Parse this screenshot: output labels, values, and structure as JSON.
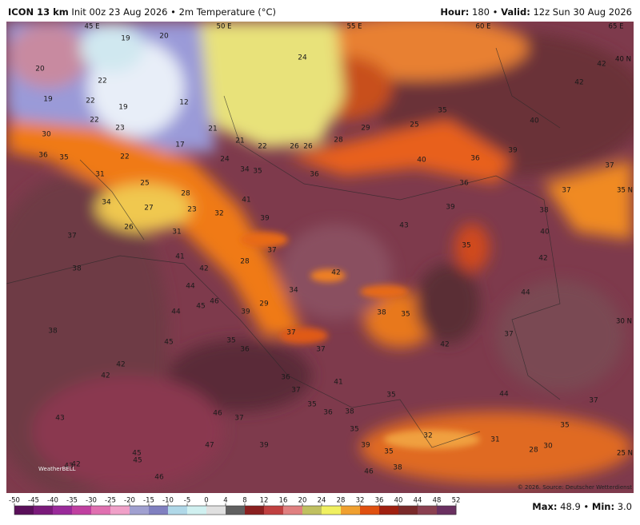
{
  "header": {
    "model": "ICON 13 km",
    "init": "Init 00z 23 Aug 2026",
    "separator": "•",
    "field": "2m Temperature (°C)",
    "hour_label": "Hour:",
    "hour": "180",
    "valid_label": "Valid:",
    "valid": "12z Sun 30 Aug 2026"
  },
  "grid_labels": [
    "45 E",
    "50 E",
    "55 E",
    "60 E",
    "65 E",
    "40 N",
    "35 N",
    "30 N",
    "25 N"
  ],
  "map_labels": [
    19,
    20,
    20,
    22,
    19,
    22,
    12,
    19,
    22,
    23,
    21,
    17,
    21,
    22,
    26,
    26,
    28,
    29,
    25,
    35,
    24,
    42,
    42,
    40,
    39,
    40,
    36,
    36,
    37,
    37,
    30,
    36,
    35,
    22,
    24,
    34,
    35,
    36,
    31,
    25,
    28,
    41,
    34,
    27,
    23,
    32,
    39,
    43,
    39,
    38,
    40,
    37,
    26,
    31,
    35,
    42,
    41,
    37,
    28,
    38,
    42,
    42,
    44,
    34,
    46,
    45,
    44,
    29,
    39,
    38,
    35,
    44,
    38,
    45,
    35,
    36,
    37,
    37,
    42,
    37,
    42,
    42,
    36,
    41,
    37,
    35,
    44,
    37,
    35,
    36,
    38,
    43,
    46,
    37,
    35,
    32,
    31,
    35,
    47,
    39,
    39,
    30,
    28,
    45,
    45,
    43,
    42,
    35,
    38,
    46,
    46
  ],
  "colorbar": {
    "ticks": [
      -50,
      -45,
      -40,
      -35,
      -30,
      -25,
      -20,
      -15,
      -10,
      -5,
      0,
      4,
      8,
      12,
      16,
      20,
      24,
      28,
      32,
      36,
      40,
      44,
      48,
      52
    ],
    "colors": [
      "#5a0f5a",
      "#7a1a7a",
      "#9a2a9a",
      "#c040a0",
      "#e070b0",
      "#f0a0c8",
      "#a0a0d0",
      "#8080c0",
      "#b0d8e8",
      "#d0f0f0",
      "#e0e0e0",
      "#606060",
      "#8a2020",
      "#c04040",
      "#e08080",
      "#c0c060",
      "#f0f060",
      "#f0a030",
      "#e05010",
      "#a02010",
      "#7a2a2a",
      "#8a4050",
      "#6a3060",
      "#306040"
    ]
  },
  "stats": {
    "max_label": "Max:",
    "max": 48.9,
    "min_label": "Min:",
    "min": {
      "value": 3,
      "label": "3.0"
    }
  },
  "copyright": "© 2026. Source: Deutscher Wetterdienst",
  "logo": "WeatherBELL"
}
